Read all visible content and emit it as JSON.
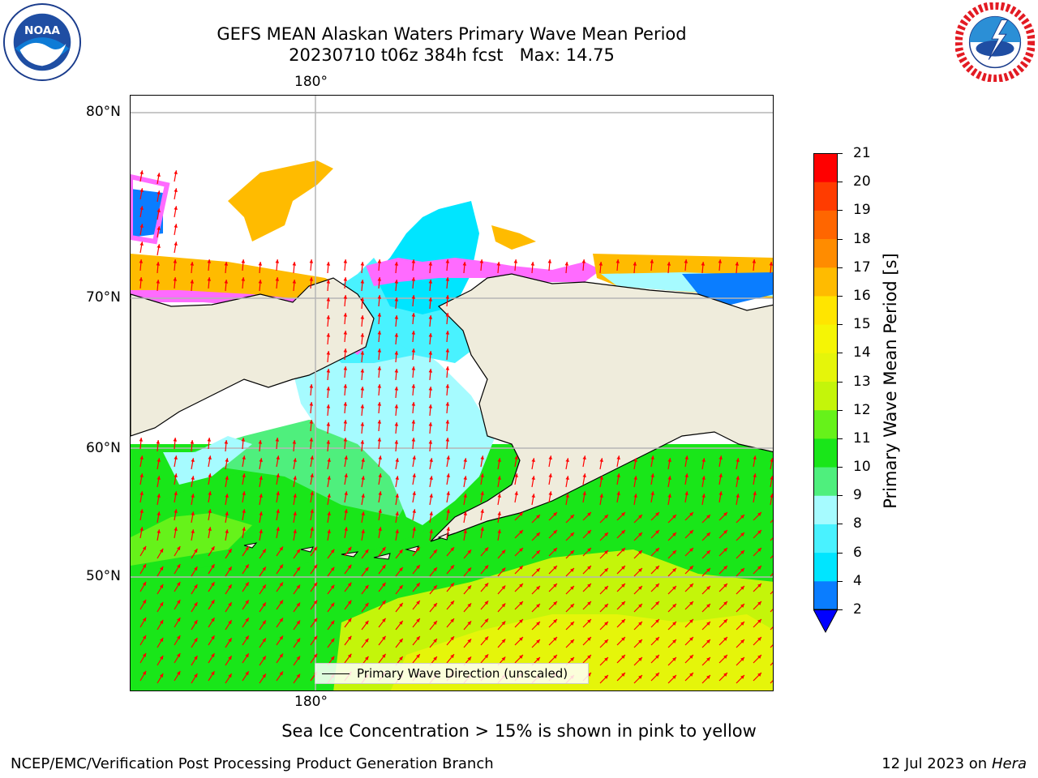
{
  "header": {
    "title_line1": "GEFS MEAN Alaskan Waters Primary Wave Mean Period",
    "title_line2": "20230710 t06z 384h fcst   Max: 14.75"
  },
  "logos": {
    "left": {
      "name": "NOAA",
      "icon": "noaa-logo"
    },
    "right": {
      "name": "NATIONAL WEATHER SERVICE",
      "icon": "nws-logo"
    }
  },
  "map": {
    "lon_labels": [
      "180°",
      "180°"
    ],
    "lat_labels": [
      "80°N",
      "70°N",
      "60°N",
      "50°N"
    ],
    "legend_label": "Primary Wave Direction (unscaled)",
    "land_color": "#efecdc",
    "arrow_color": "#ff0000"
  },
  "chart_data": {
    "type": "heatmap",
    "title": "GEFS MEAN Alaskan Waters Primary Wave Mean Period",
    "subtitle": "20230710 t06z 384h fcst   Max: 14.75",
    "variable_max": 14.75,
    "colorbar": {
      "label": "Primary Wave Mean Period [s]",
      "ticks": [
        2,
        4,
        6,
        8,
        9,
        10,
        11,
        12,
        13,
        14,
        15,
        16,
        17,
        18,
        19,
        20,
        21
      ],
      "bands": [
        {
          "from": 2,
          "to": 4,
          "color": "#0a7dff"
        },
        {
          "from": 4,
          "to": 6,
          "color": "#00e5ff"
        },
        {
          "from": 6,
          "to": 8,
          "color": "#49f2ff"
        },
        {
          "from": 8,
          "to": 9,
          "color": "#a6fbff"
        },
        {
          "from": 9,
          "to": 10,
          "color": "#4fef7d"
        },
        {
          "from": 10,
          "to": 11,
          "color": "#19e619"
        },
        {
          "from": 11,
          "to": 12,
          "color": "#66f21a"
        },
        {
          "from": 12,
          "to": 13,
          "color": "#c4f50a"
        },
        {
          "from": 13,
          "to": 14,
          "color": "#e5f50a"
        },
        {
          "from": 14,
          "to": 15,
          "color": "#f5f505"
        },
        {
          "from": 15,
          "to": 16,
          "color": "#ffe500"
        },
        {
          "from": 16,
          "to": 17,
          "color": "#ffbb00"
        },
        {
          "from": 17,
          "to": 18,
          "color": "#ff8c00"
        },
        {
          "from": 18,
          "to": 19,
          "color": "#ff6600"
        },
        {
          "from": 19,
          "to": 20,
          "color": "#ff3c00"
        },
        {
          "from": 20,
          "to": 21,
          "color": "#ff0000"
        }
      ],
      "under_color": "#0000ff",
      "extend": "min"
    },
    "grid": true,
    "legend_placement": "bottom-center"
  },
  "footer": {
    "note": "Sea Ice Concentration > 15% is shown in pink to yellow",
    "credit_left": "NCEP/EMC/Verification Post Processing Product Generation Branch",
    "credit_date": "12 Jul 2023 on ",
    "credit_host": "Hera"
  }
}
